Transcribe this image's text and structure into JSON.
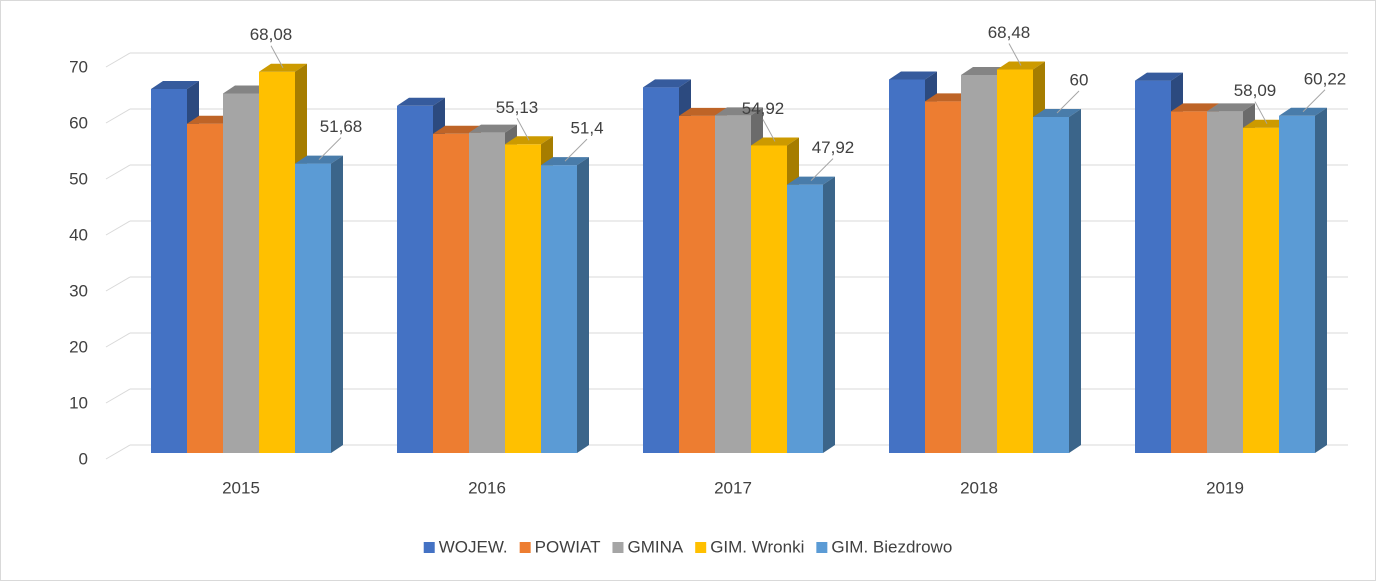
{
  "chart_data": {
    "type": "bar3d",
    "categories": [
      "2015",
      "2016",
      "2017",
      "2018",
      "2019"
    ],
    "series": [
      {
        "name": "WOJEW.",
        "color": "#4472c4",
        "values": [
          65,
          62,
          65.3,
          66.7,
          66.5
        ]
      },
      {
        "name": "POWIAT",
        "color": "#ed7d31",
        "values": [
          58.8,
          57,
          60.2,
          62.8,
          61
        ]
      },
      {
        "name": "GMINA",
        "color": "#a5a5a5",
        "values": [
          64.2,
          57.2,
          60.3,
          67.5,
          61
        ]
      },
      {
        "name": "GIM. Wronki",
        "color": "#ffc000",
        "values": [
          68.08,
          55.13,
          54.92,
          68.48,
          58.09
        ],
        "value_labels": [
          "68,08",
          "55,13",
          "54,92",
          "68,48",
          "58,09"
        ]
      },
      {
        "name": "GIM. Biezdrowo",
        "color": "#5b9bd5",
        "values": [
          51.68,
          51.4,
          47.92,
          60,
          60.22
        ],
        "value_labels": [
          "51,68",
          "51,4",
          "47,92",
          "60",
          "60,22"
        ]
      }
    ],
    "ylim": [
      0,
      70
    ],
    "yticks": [
      0,
      10,
      20,
      30,
      40,
      50,
      60,
      70
    ],
    "grid": true,
    "legend": "bottom"
  }
}
